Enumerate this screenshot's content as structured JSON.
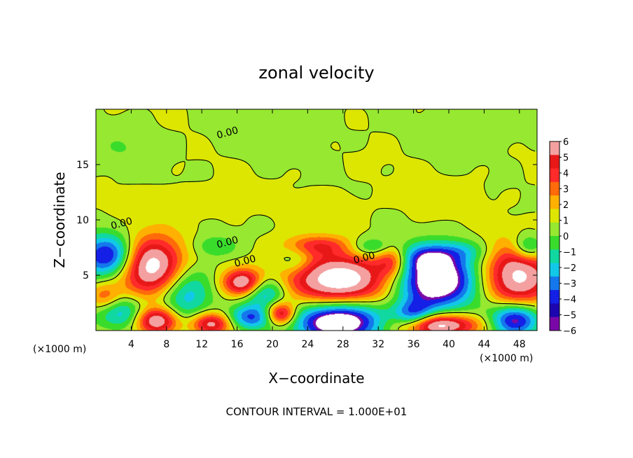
{
  "chart_data": {
    "type": "heatmap",
    "title": "zonal velocity",
    "xlabel": "X−coordinate",
    "ylabel": "Z−coordinate",
    "x_units": "(×1000 m)",
    "x_units_right": "(×1000 m)",
    "xlim": [
      0,
      50
    ],
    "ylim": [
      0,
      20
    ],
    "x_ticks": [
      4,
      8,
      12,
      16,
      20,
      24,
      28,
      32,
      36,
      40,
      44,
      48
    ],
    "y_ticks": [
      5,
      10,
      15
    ],
    "x_tick_labels": [
      "4",
      "8",
      "12",
      "16",
      "20",
      "24",
      "28",
      "32",
      "36",
      "40",
      "44",
      "48"
    ],
    "y_tick_labels": [
      "5",
      "10",
      "15"
    ],
    "colorbar": {
      "ticks": [
        6,
        5,
        4,
        3,
        2,
        1,
        0,
        -1,
        -2,
        -3,
        -4,
        -5,
        -6
      ],
      "tick_labels": [
        "6",
        "5",
        "4",
        "3",
        "2",
        "1",
        "0",
        "−1",
        "−2",
        "−3",
        "−4",
        "−5",
        "−6"
      ],
      "colors": [
        "#f4a0a0",
        "#e81818",
        "#ff2a2a",
        "#ff6a0a",
        "#ffb000",
        "#dde600",
        "#96e830",
        "#3adc2c",
        "#10d8a0",
        "#12c8e8",
        "#1478ec",
        "#1420e6",
        "#1c06b0",
        "#7a08a8"
      ]
    },
    "grid": false,
    "contour_labels": [
      {
        "text": "0.00",
        "x": 15,
        "y": 17.6
      },
      {
        "text": "0.00",
        "x": 3,
        "y": 9.4
      },
      {
        "text": "0.00",
        "x": 15,
        "y": 7.7
      },
      {
        "text": "0.00",
        "x": 17,
        "y": 6.0
      },
      {
        "text": "0.00",
        "x": 30.5,
        "y": 6.3
      }
    ],
    "features": [
      {
        "x": 1.5,
        "y": 6.7,
        "v": -7,
        "rx": 3.2,
        "ry": 2.0
      },
      {
        "x": 6.2,
        "y": 5.8,
        "v": 8,
        "rx": 3.8,
        "ry": 2.6
      },
      {
        "x": 10.2,
        "y": 3.5,
        "v": -4,
        "rx": 3.0,
        "ry": 2.6
      },
      {
        "x": 16.8,
        "y": 4.3,
        "v": 7,
        "rx": 2.3,
        "ry": 1.2
      },
      {
        "x": 19.0,
        "y": 3.5,
        "v": -5,
        "rx": 2.4,
        "ry": 1.4
      },
      {
        "x": 27.5,
        "y": 4.6,
        "v": 8,
        "rx": 5.8,
        "ry": 2.3
      },
      {
        "x": 38.5,
        "y": 4.5,
        "v": -9,
        "rx": 4.6,
        "ry": 2.6
      },
      {
        "x": 47.8,
        "y": 4.9,
        "v": 7,
        "rx": 3.8,
        "ry": 2.8
      },
      {
        "x": 1.0,
        "y": 3.0,
        "v": 3,
        "rx": 1.8,
        "ry": 1.3
      },
      {
        "x": 3.0,
        "y": 1.6,
        "v": -4,
        "rx": 3.2,
        "ry": 1.5
      },
      {
        "x": 6.8,
        "y": 0.9,
        "v": 7,
        "rx": 2.4,
        "ry": 1.2
      },
      {
        "x": 13.0,
        "y": 0.6,
        "v": 6,
        "rx": 2.2,
        "ry": 1.0
      },
      {
        "x": 17.5,
        "y": 1.2,
        "v": -5,
        "rx": 2.4,
        "ry": 1.1
      },
      {
        "x": 21.0,
        "y": 1.5,
        "v": 6,
        "rx": 1.6,
        "ry": 1.0
      },
      {
        "x": 27.5,
        "y": 0.8,
        "v": -9,
        "rx": 5.0,
        "ry": 1.8
      },
      {
        "x": 36.0,
        "y": 1.2,
        "v": -5,
        "rx": 2.2,
        "ry": 1.3
      },
      {
        "x": 38.5,
        "y": 0.5,
        "v": 8,
        "rx": 4.5,
        "ry": 1.0
      },
      {
        "x": 47.5,
        "y": 1.0,
        "v": -7,
        "rx": 2.8,
        "ry": 1.5
      },
      {
        "x": 25.0,
        "y": 7.7,
        "v": 3,
        "rx": 3.5,
        "ry": 0.9
      },
      {
        "x": 31.5,
        "y": 7.5,
        "v": -3,
        "rx": 2.5,
        "ry": 0.9
      },
      {
        "x": 13.5,
        "y": 7.6,
        "v": -2,
        "rx": 2.5,
        "ry": 1.0
      },
      {
        "x": 41.5,
        "y": 7.2,
        "v": -2,
        "rx": 3.0,
        "ry": 1.0
      },
      {
        "x": 37.5,
        "y": 6.6,
        "v": -3,
        "rx": 3.0,
        "ry": 1.2
      },
      {
        "x": 33.5,
        "y": 6.3,
        "v": 4,
        "rx": 1.8,
        "ry": 1.5
      },
      {
        "x": 22.5,
        "y": 6.2,
        "v": -2,
        "rx": 2.0,
        "ry": 1.2
      },
      {
        "x": 49.0,
        "y": 7.5,
        "v": -4,
        "rx": 1.8,
        "ry": 1.2
      },
      {
        "x": 9.8,
        "y": 11.5,
        "v": 1,
        "rx": 5.0,
        "ry": 1.2
      },
      {
        "x": 26.0,
        "y": 11.2,
        "v": 0.8,
        "rx": 4.0,
        "ry": 1.2
      },
      {
        "x": 40.0,
        "y": 12.0,
        "v": 0.8,
        "rx": 3.5,
        "ry": 1.5
      },
      {
        "x": 3.0,
        "y": 16.5,
        "v": -0.9,
        "rx": 4.0,
        "ry": 2.0
      },
      {
        "x": 20.0,
        "y": 18.0,
        "v": -0.8,
        "rx": 6.0,
        "ry": 2.0
      },
      {
        "x": 43.0,
        "y": 18.0,
        "v": -0.7,
        "rx": 5.0,
        "ry": 1.8
      }
    ]
  },
  "footer": {
    "contour_interval": "CONTOUR INTERVAL = 1.000E+01"
  }
}
